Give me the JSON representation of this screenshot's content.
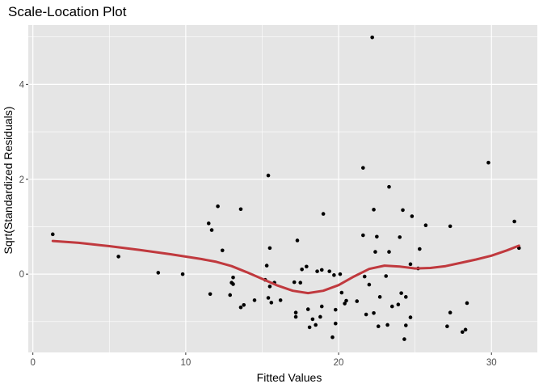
{
  "chart_data": {
    "type": "scatter",
    "title": "Scale-Location Plot",
    "xlabel": "Fitted Values",
    "ylabel": "Sqrt(Standardized Residuals)",
    "xlim": [
      -0.3,
      33.0
    ],
    "ylim": [
      -1.65,
      5.25
    ],
    "x_ticks": [
      0,
      10,
      20,
      30
    ],
    "x_tick_labels": [
      "0",
      "10",
      "20",
      "30"
    ],
    "y_ticks": [
      0,
      2,
      4
    ],
    "y_tick_labels": [
      "0",
      "2",
      "4"
    ],
    "grid": true,
    "legend": "none",
    "colors": {
      "panel": "#e5e5e5",
      "grid": "#ffffff",
      "points": "#000000",
      "smooth": "#c0393e"
    },
    "points": [
      [
        1.3,
        0.84
      ],
      [
        5.6,
        0.37
      ],
      [
        8.2,
        0.03
      ],
      [
        9.8,
        0.0
      ],
      [
        11.5,
        1.07
      ],
      [
        11.6,
        -0.42
      ],
      [
        11.7,
        0.93
      ],
      [
        12.1,
        1.43
      ],
      [
        12.4,
        0.5
      ],
      [
        12.9,
        -0.44
      ],
      [
        13.0,
        -0.18
      ],
      [
        13.1,
        -0.07
      ],
      [
        13.1,
        -0.21
      ],
      [
        13.6,
        1.37
      ],
      [
        13.6,
        -0.7
      ],
      [
        13.8,
        -0.65
      ],
      [
        14.5,
        -0.55
      ],
      [
        15.2,
        -0.12
      ],
      [
        15.3,
        0.18
      ],
      [
        15.4,
        2.08
      ],
      [
        15.4,
        -0.5
      ],
      [
        15.5,
        -0.26
      ],
      [
        15.5,
        0.55
      ],
      [
        15.6,
        -0.6
      ],
      [
        15.8,
        -0.18
      ],
      [
        16.2,
        -0.55
      ],
      [
        17.1,
        -0.17
      ],
      [
        17.2,
        -0.81
      ],
      [
        17.2,
        -0.9
      ],
      [
        17.3,
        0.71
      ],
      [
        17.5,
        -0.18
      ],
      [
        17.6,
        0.1
      ],
      [
        17.9,
        0.16
      ],
      [
        18.0,
        -0.74
      ],
      [
        18.1,
        -1.12
      ],
      [
        18.3,
        -0.95
      ],
      [
        18.5,
        -1.07
      ],
      [
        18.6,
        0.06
      ],
      [
        18.8,
        -0.9
      ],
      [
        18.9,
        -0.68
      ],
      [
        18.9,
        0.09
      ],
      [
        19.0,
        1.27
      ],
      [
        19.4,
        0.06
      ],
      [
        19.6,
        -1.33
      ],
      [
        19.7,
        -0.02
      ],
      [
        19.8,
        -0.75
      ],
      [
        19.8,
        -1.04
      ],
      [
        20.1,
        0.0
      ],
      [
        20.2,
        -0.39
      ],
      [
        20.4,
        -0.62
      ],
      [
        20.5,
        -0.56
      ],
      [
        21.2,
        -0.57
      ],
      [
        21.6,
        0.82
      ],
      [
        21.6,
        2.24
      ],
      [
        21.7,
        -0.05
      ],
      [
        21.8,
        -0.85
      ],
      [
        22.0,
        -0.22
      ],
      [
        22.2,
        4.99
      ],
      [
        22.3,
        -0.82
      ],
      [
        22.3,
        1.36
      ],
      [
        22.4,
        0.47
      ],
      [
        22.5,
        0.79
      ],
      [
        22.6,
        -1.1
      ],
      [
        22.7,
        -0.48
      ],
      [
        23.1,
        -0.04
      ],
      [
        23.2,
        -1.07
      ],
      [
        23.3,
        0.47
      ],
      [
        23.3,
        1.84
      ],
      [
        23.5,
        -0.68
      ],
      [
        23.9,
        -0.64
      ],
      [
        24.0,
        0.78
      ],
      [
        24.1,
        -0.4
      ],
      [
        24.2,
        1.35
      ],
      [
        24.3,
        -1.37
      ],
      [
        24.4,
        -0.48
      ],
      [
        24.4,
        -1.08
      ],
      [
        24.7,
        0.21
      ],
      [
        24.7,
        -0.91
      ],
      [
        24.8,
        1.22
      ],
      [
        25.2,
        0.12
      ],
      [
        25.3,
        0.53
      ],
      [
        25.7,
        1.03
      ],
      [
        27.1,
        -1.1
      ],
      [
        27.3,
        -0.81
      ],
      [
        27.3,
        1.01
      ],
      [
        28.1,
        -1.22
      ],
      [
        28.3,
        -1.17
      ],
      [
        28.4,
        -0.61
      ],
      [
        29.8,
        2.35
      ],
      [
        31.5,
        1.11
      ],
      [
        31.8,
        0.55
      ]
    ],
    "smooth_line": [
      [
        1.3,
        0.7
      ],
      [
        3.0,
        0.66
      ],
      [
        5.0,
        0.59
      ],
      [
        7.0,
        0.51
      ],
      [
        9.0,
        0.42
      ],
      [
        11.0,
        0.32
      ],
      [
        12.0,
        0.26
      ],
      [
        13.0,
        0.17
      ],
      [
        14.0,
        0.04
      ],
      [
        15.0,
        -0.1
      ],
      [
        16.0,
        -0.24
      ],
      [
        17.0,
        -0.35
      ],
      [
        18.0,
        -0.4
      ],
      [
        19.0,
        -0.35
      ],
      [
        20.0,
        -0.23
      ],
      [
        21.0,
        -0.05
      ],
      [
        22.0,
        0.11
      ],
      [
        23.0,
        0.18
      ],
      [
        24.0,
        0.16
      ],
      [
        25.0,
        0.12
      ],
      [
        26.0,
        0.13
      ],
      [
        27.0,
        0.17
      ],
      [
        28.0,
        0.24
      ],
      [
        29.0,
        0.31
      ],
      [
        30.0,
        0.39
      ],
      [
        31.0,
        0.5
      ],
      [
        31.8,
        0.6
      ]
    ]
  }
}
